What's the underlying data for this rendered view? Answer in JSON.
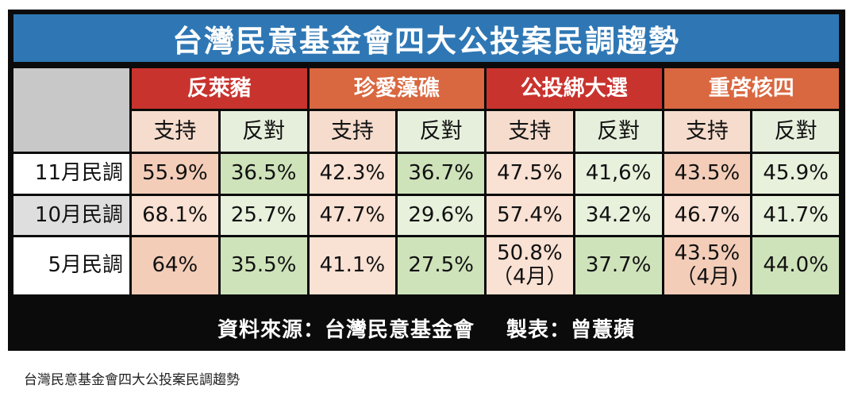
{
  "title": "台灣民意基金會四大公投案民調趨勢",
  "groups": [
    {
      "label": "反萊豬",
      "color": "#c9332e"
    },
    {
      "label": "珍愛藻礁",
      "color": "#d9673f"
    },
    {
      "label": "公投綁大選",
      "color": "#c9332e"
    },
    {
      "label": "重啓核四",
      "color": "#d9673f"
    }
  ],
  "subheaders": [
    "支持",
    "反對",
    "支持",
    "反對",
    "支持",
    "反對",
    "支持",
    "反對"
  ],
  "rows": [
    {
      "label": "11月民調",
      "values": [
        "55.9%",
        "36.5%",
        "42.3%",
        "36.7%",
        "47.5%",
        "41,6%",
        "43.5%",
        "45.9%"
      ]
    },
    {
      "label": "10月民調",
      "values": [
        "68.1%",
        "25.7%",
        "47.7%",
        "29.6%",
        "57.4%",
        "34.2%",
        "46.7%",
        "41.7%"
      ]
    },
    {
      "label": "5月民調",
      "values": [
        "64%",
        "35.5%",
        "41.1%",
        "27.5%",
        "50.8%",
        "37.7%",
        "43.5%",
        "44.0%"
      ],
      "notes": {
        "4": "（4月）",
        "6": "（4月)"
      }
    }
  ],
  "footer": {
    "source": "資料來源：台灣民意基金會",
    "maker": "製表：曾薏蘋"
  },
  "caption": "台灣民意基金會四大公投案民調趨勢"
}
